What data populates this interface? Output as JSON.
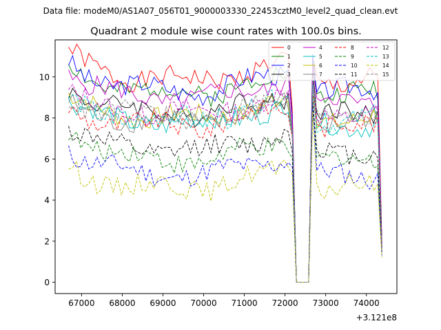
{
  "figure": {
    "header": "Data file: modeM0/AS1A07_056T01_9000003330_22453cztM0_level2_quad_clean.evt"
  },
  "chart_data": {
    "type": "line",
    "title": "Quadrant 2 module wise count rates with 100.0s bins.",
    "xlabel": "",
    "ylabel": "",
    "x_offset_label": "+3.121e8",
    "x_offset": 312100000,
    "xlim": [
      66350,
      74750
    ],
    "ylim": [
      -0.55,
      11.8
    ],
    "x_ticks": [
      67000,
      68000,
      69000,
      70000,
      71000,
      72000,
      73000,
      74000
    ],
    "x_tick_labels": [
      "67000",
      "68000",
      "69000",
      "70000",
      "71000",
      "72000",
      "73000",
      "74000"
    ],
    "y_ticks": [
      0,
      2,
      4,
      6,
      8,
      10
    ],
    "y_tick_labels": [
      "0",
      "2",
      "4",
      "6",
      "8",
      "10"
    ],
    "grid": false,
    "legend_position": "top-right",
    "x_start": 66680,
    "x_step": 100,
    "n_points": 78,
    "gap": [
      72200,
      72600
    ],
    "series": [
      {
        "name": "0",
        "color": "#ff0000",
        "dash": "solid",
        "base": 9.8,
        "first": 11.2,
        "last": 2.0,
        "spike": 11.0,
        "seed": 1
      },
      {
        "name": "1",
        "color": "#008000",
        "dash": "solid",
        "base": 9.2,
        "first": 10.5,
        "last": 1.9,
        "spike": 10.8,
        "seed": 2
      },
      {
        "name": "2",
        "color": "#0000ff",
        "dash": "solid",
        "base": 9.3,
        "first": 10.8,
        "last": 1.9,
        "spike": 11.1,
        "seed": 3
      },
      {
        "name": "3",
        "color": "#000000",
        "dash": "solid",
        "base": 8.2,
        "first": 9.6,
        "last": 1.8,
        "spike": 10.3,
        "seed": 4
      },
      {
        "name": "4",
        "color": "#bf00bf",
        "dash": "solid",
        "base": 8.9,
        "first": 10.2,
        "last": 1.8,
        "spike": 10.6,
        "seed": 5
      },
      {
        "name": "5",
        "color": "#00bfbf",
        "dash": "solid",
        "base": 7.7,
        "first": 8.8,
        "last": 1.7,
        "spike": 9.9,
        "seed": 6
      },
      {
        "name": "6",
        "color": "#bfbf00",
        "dash": "solid",
        "base": 8.0,
        "first": 9.0,
        "last": 1.7,
        "spike": 9.7,
        "seed": 7
      },
      {
        "name": "7",
        "color": "#808080",
        "dash": "solid",
        "base": 7.8,
        "first": 8.6,
        "last": 1.7,
        "spike": 9.6,
        "seed": 8
      },
      {
        "name": "8",
        "color": "#ff0000",
        "dash": "dashed",
        "base": 7.6,
        "first": 8.4,
        "last": 1.6,
        "spike": 9.2,
        "seed": 9
      },
      {
        "name": "9",
        "color": "#008000",
        "dash": "dashed",
        "base": 5.9,
        "first": 7.5,
        "last": 1.4,
        "spike": 9.0,
        "seed": 10
      },
      {
        "name": "10",
        "color": "#0000ff",
        "dash": "dashed",
        "base": 5.2,
        "first": 6.5,
        "last": 1.3,
        "spike": 8.7,
        "seed": 11
      },
      {
        "name": "11",
        "color": "#000000",
        "dash": "dashed",
        "base": 6.4,
        "first": 7.5,
        "last": 1.5,
        "spike": 8.8,
        "seed": 12
      },
      {
        "name": "12",
        "color": "#bf00bf",
        "dash": "dashed",
        "base": 8.2,
        "first": 9.2,
        "last": 1.7,
        "spike": 9.8,
        "seed": 13
      },
      {
        "name": "13",
        "color": "#00bfbf",
        "dash": "dashed",
        "base": 7.9,
        "first": 8.8,
        "last": 1.6,
        "spike": 9.6,
        "seed": 14
      },
      {
        "name": "14",
        "color": "#bfbf00",
        "dash": "dashed",
        "base": 4.6,
        "first": 5.6,
        "last": 1.2,
        "spike": 8.3,
        "seed": 15
      },
      {
        "name": "15",
        "color": "#808080",
        "dash": "dashed",
        "base": 8.1,
        "first": 9.0,
        "last": 1.6,
        "spike": 9.5,
        "seed": 16
      }
    ]
  }
}
